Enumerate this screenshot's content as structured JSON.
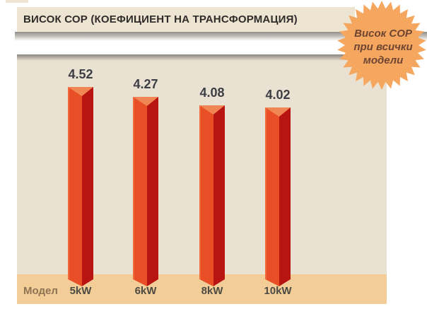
{
  "header": {
    "title": "ВИСОК СОР (КОЕФИЦИЕНТ НА ТРАНСФОРМАЦИЯ)",
    "bar_color": "#EDE4D2",
    "text_color": "#2E2B28"
  },
  "badge": {
    "lines": [
      "Висок СОР",
      "при всички",
      "модели"
    ],
    "fill": "#F6A75F",
    "text_color": "#6E4532"
  },
  "chart_data": {
    "type": "bar",
    "title": "ВИСОК СОР (КОЕФИЦИЕНТ НА ТРАНСФОРМАЦИЯ)",
    "categories": [
      "5kW",
      "6kW",
      "8kW",
      "10kW"
    ],
    "values": [
      4.52,
      4.27,
      4.08,
      4.02
    ],
    "value_labels": [
      "4.52",
      "4.27",
      "4.08",
      "4.02"
    ],
    "xlabel": "Модел",
    "ylabel": "",
    "ylim": [
      0,
      5
    ],
    "grid": false,
    "legend": false,
    "plot_bg": "#E9E1D2",
    "axis_strip_bg": "#F2CD97",
    "bar_face_left": "#E94F26",
    "bar_face_right": "#B81411",
    "bar_top_face": "#EF8653",
    "value_label_color": "#3D3E44",
    "category_label_color": "#4D4B44",
    "xlabel_color": "#8C7352"
  }
}
